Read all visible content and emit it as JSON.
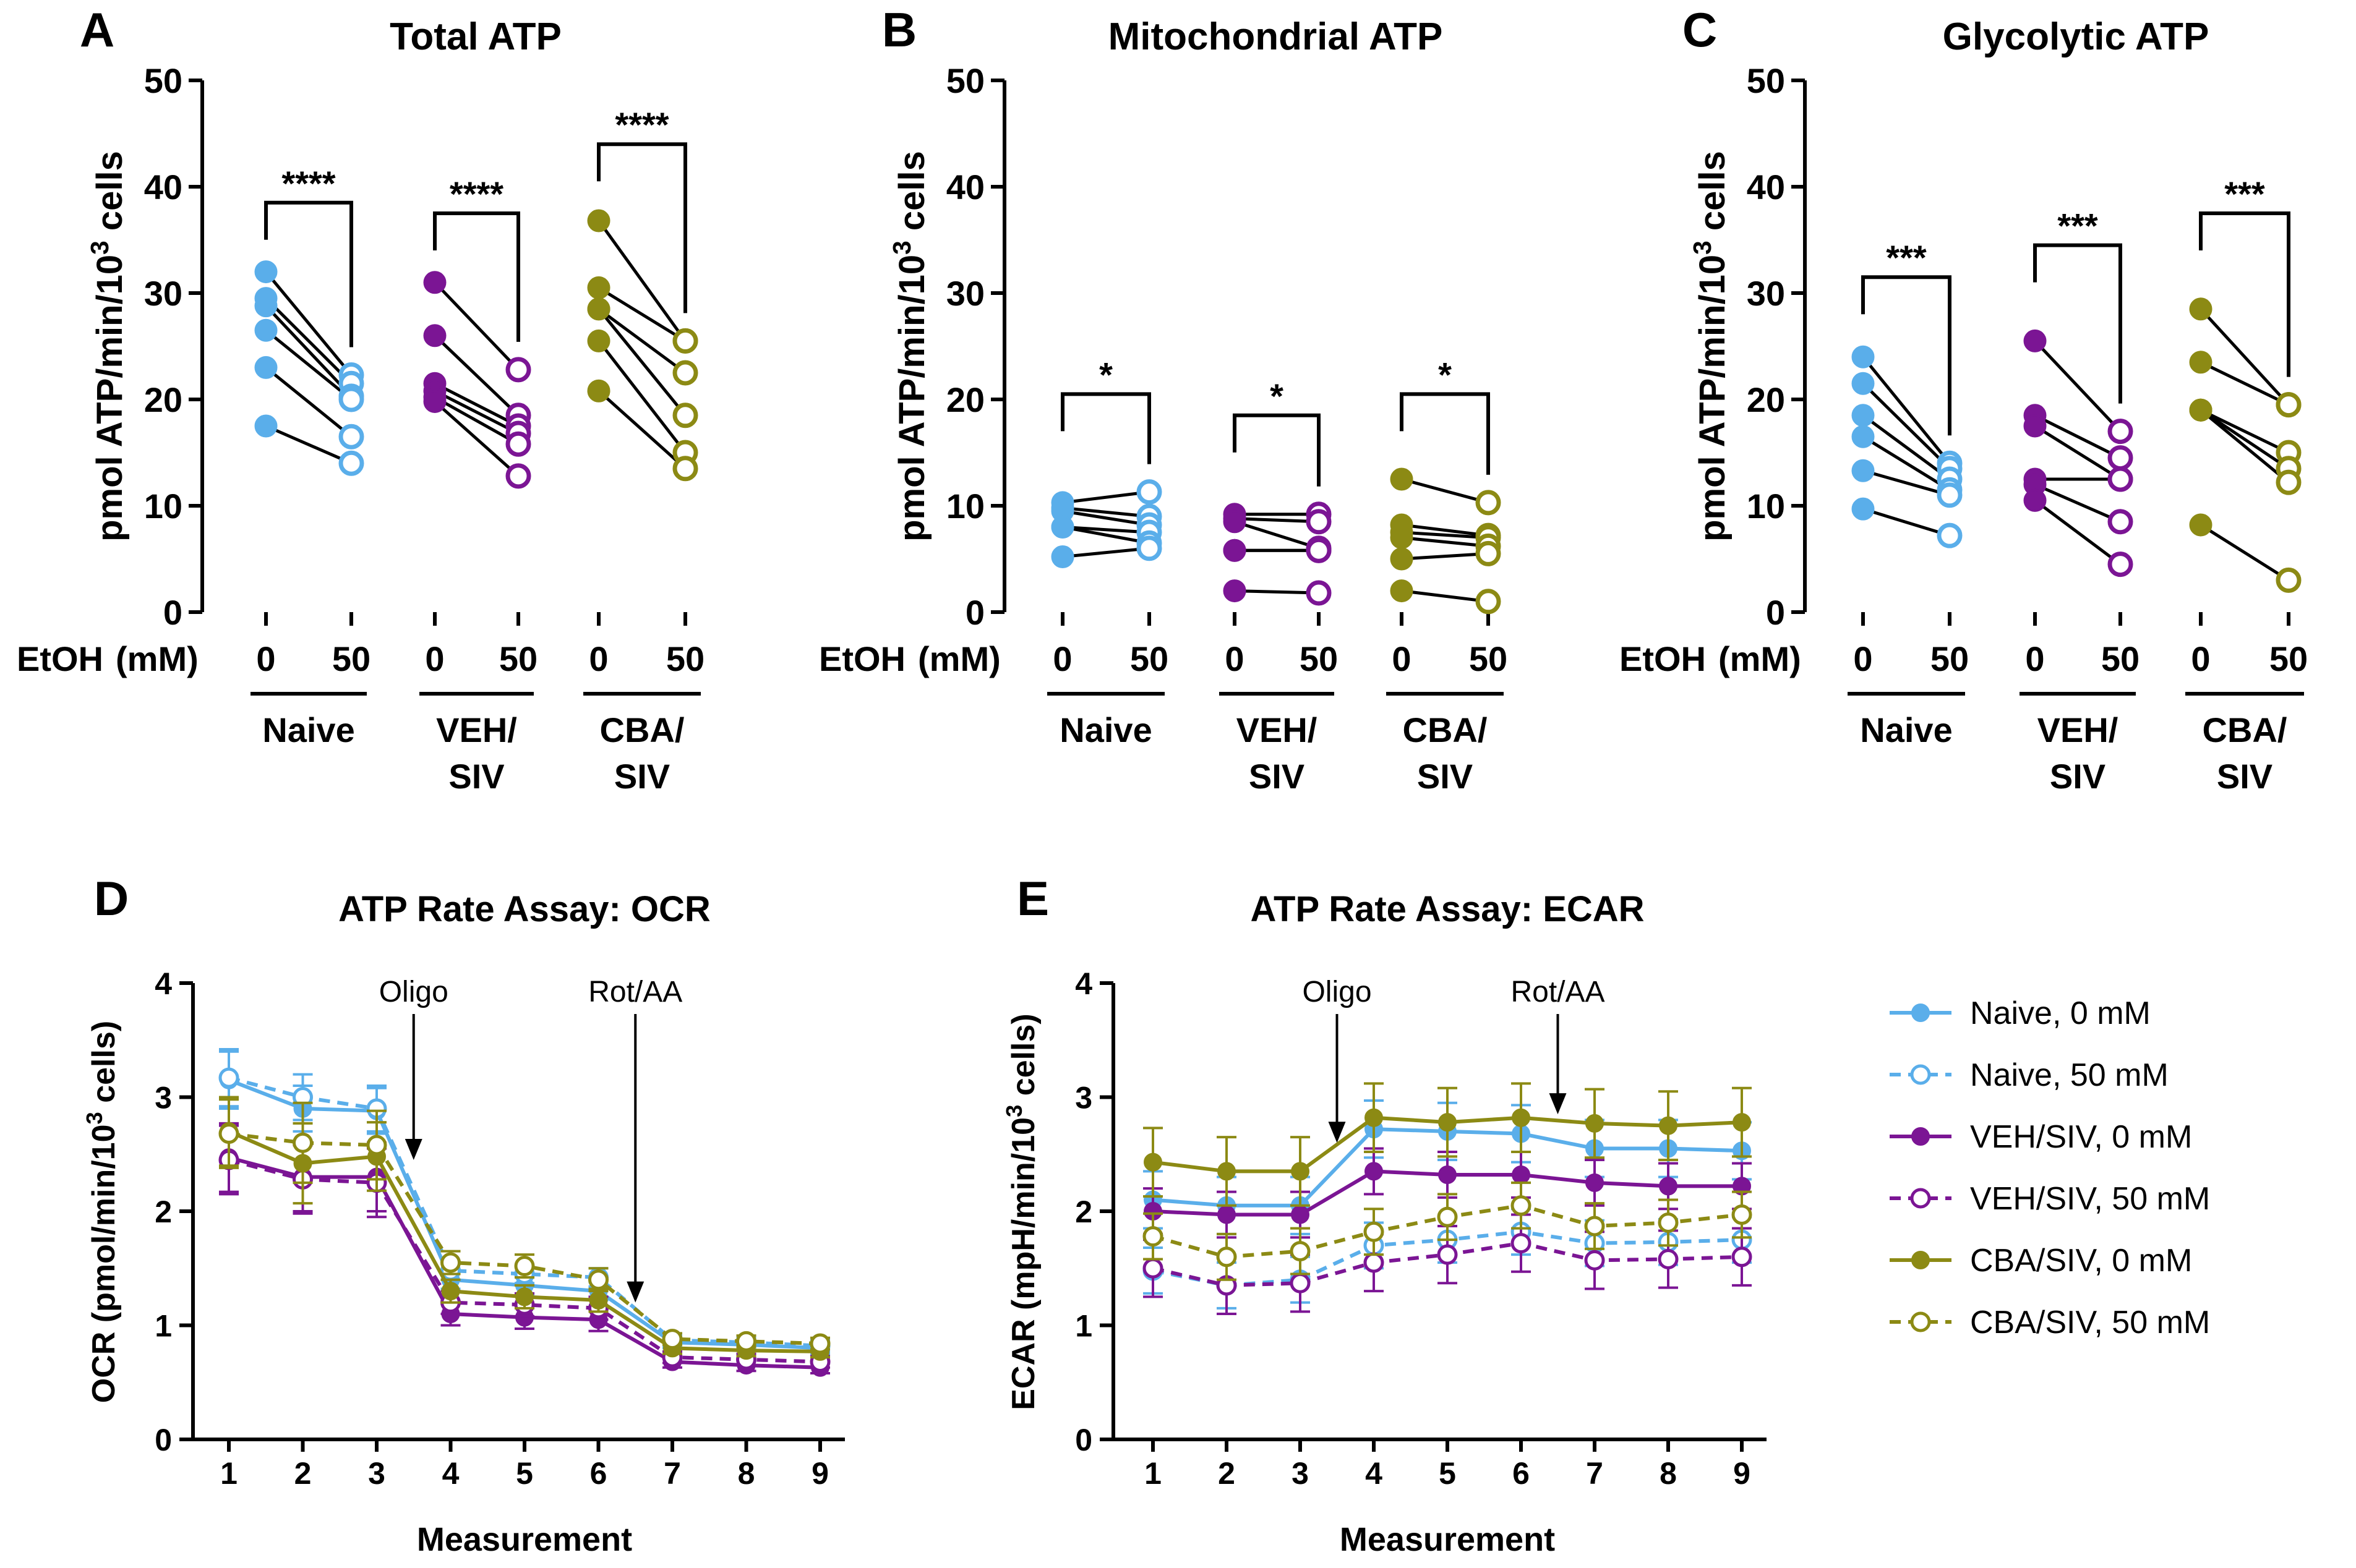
{
  "colors": {
    "naive": "#5aaeea",
    "veh": "#7b1594",
    "cba": "#8c8a14",
    "black": "#000000"
  },
  "top_common": {
    "etoh_label": "EtOH",
    "mm_label": "(mM)",
    "dose_labels": [
      "0",
      "50"
    ],
    "groups": [
      {
        "line1": "Naive",
        "line2": ""
      },
      {
        "line1": "VEH/",
        "line2": "SIV"
      },
      {
        "line1": "CBA/",
        "line2": "SIV"
      }
    ]
  },
  "chart_data": [
    {
      "panel": "A",
      "type": "scatter",
      "title": "Total ATP",
      "ylabel": "pmol ATP/min/10³ cells",
      "ylim": [
        0,
        50
      ],
      "yticks": [
        "0",
        "10",
        "20",
        "30",
        "40",
        "50"
      ],
      "groups": [
        {
          "name": "Naive",
          "color_key": "naive",
          "sig": "****",
          "bracket_top": 38.5,
          "pairs": [
            [
              32.0,
              22.3
            ],
            [
              29.5,
              21.5
            ],
            [
              28.8,
              20.3
            ],
            [
              26.5,
              20.0
            ],
            [
              23.0,
              16.5
            ],
            [
              17.5,
              14.0
            ]
          ]
        },
        {
          "name": "VEH/SIV",
          "color_key": "veh",
          "sig": "****",
          "bracket_top": 37.5,
          "pairs": [
            [
              31.0,
              22.8
            ],
            [
              26.0,
              18.5
            ],
            [
              21.5,
              17.5
            ],
            [
              20.8,
              16.8
            ],
            [
              20.2,
              15.8
            ],
            [
              19.8,
              12.8
            ]
          ]
        },
        {
          "name": "CBA/SIV",
          "color_key": "cba",
          "sig": "****",
          "bracket_top": 44.0,
          "pairs": [
            [
              36.8,
              25.5
            ],
            [
              30.5,
              25.5
            ],
            [
              28.5,
              22.5
            ],
            [
              28.5,
              18.5
            ],
            [
              25.5,
              15.0
            ],
            [
              20.8,
              13.5
            ]
          ]
        }
      ]
    },
    {
      "panel": "B",
      "type": "scatter",
      "title": "Mitochondrial ATP",
      "ylabel": "pmol ATP/min/10³ cells",
      "ylim": [
        0,
        50
      ],
      "yticks": [
        "0",
        "10",
        "20",
        "30",
        "40",
        "50"
      ],
      "groups": [
        {
          "name": "Naive",
          "color_key": "naive",
          "sig": "*",
          "bracket_top": 20.5,
          "pairs": [
            [
              10.3,
              11.3
            ],
            [
              9.8,
              9.0
            ],
            [
              9.5,
              8.2
            ],
            [
              8.0,
              7.5
            ],
            [
              8.0,
              6.5
            ],
            [
              5.2,
              6.0
            ]
          ]
        },
        {
          "name": "VEH/SIV",
          "color_key": "veh",
          "sig": "*",
          "bracket_top": 18.5,
          "pairs": [
            [
              9.2,
              9.2
            ],
            [
              8.8,
              8.5
            ],
            [
              8.5,
              6.0
            ],
            [
              5.8,
              5.8
            ],
            [
              5.8,
              5.8
            ],
            [
              2.0,
              1.8
            ]
          ]
        },
        {
          "name": "CBA/SIV",
          "color_key": "cba",
          "sig": "*",
          "bracket_top": 20.5,
          "pairs": [
            [
              12.5,
              10.3
            ],
            [
              8.2,
              7.2
            ],
            [
              7.5,
              7.0
            ],
            [
              7.0,
              6.2
            ],
            [
              5.0,
              5.5
            ],
            [
              2.0,
              1.0
            ]
          ]
        }
      ]
    },
    {
      "panel": "C",
      "type": "scatter",
      "title": "Glycolytic ATP",
      "ylabel": "pmol ATP/min/10³ cells",
      "ylim": [
        0,
        50
      ],
      "yticks": [
        "0",
        "10",
        "20",
        "30",
        "40",
        "50"
      ],
      "groups": [
        {
          "name": "Naive",
          "color_key": "naive",
          "sig": "***",
          "bracket_top": 31.5,
          "pairs": [
            [
              24.0,
              14.0
            ],
            [
              21.5,
              13.5
            ],
            [
              18.5,
              12.5
            ],
            [
              16.5,
              11.5
            ],
            [
              13.3,
              11.0
            ],
            [
              9.7,
              7.2
            ]
          ]
        },
        {
          "name": "VEH/SIV",
          "color_key": "veh",
          "sig": "***",
          "bracket_top": 34.5,
          "pairs": [
            [
              25.5,
              17.0
            ],
            [
              18.5,
              14.5
            ],
            [
              17.5,
              12.5
            ],
            [
              12.5,
              12.5
            ],
            [
              12.0,
              8.5
            ],
            [
              10.5,
              4.5
            ]
          ]
        },
        {
          "name": "CBA/SIV",
          "color_key": "cba",
          "sig": "***",
          "bracket_top": 37.5,
          "pairs": [
            [
              28.5,
              19.5
            ],
            [
              23.5,
              19.5
            ],
            [
              19.0,
              15.0
            ],
            [
              19.0,
              13.5
            ],
            [
              19.0,
              12.2
            ],
            [
              8.2,
              3.0
            ]
          ]
        }
      ]
    },
    {
      "panel": "D",
      "type": "line",
      "title": "ATP Rate Assay: OCR",
      "ylabel": "OCR (pmol/min/10³ cells)",
      "xlabel": "Measurement",
      "x": [
        1,
        2,
        3,
        4,
        5,
        6,
        7,
        8,
        9
      ],
      "ylim": [
        0,
        4
      ],
      "yticks": [
        "0",
        "1",
        "2",
        "3",
        "4"
      ],
      "annotations": [
        {
          "label": "Oligo",
          "x": 3.5,
          "y_start": 3.95,
          "y_end": 2.45
        },
        {
          "label": "Rot/AA",
          "x": 6.5,
          "y_start": 3.95,
          "y_end": 1.2
        }
      ],
      "series": [
        {
          "name": "Naive, 0 mM",
          "color_key": "naive",
          "dashed": false,
          "filled": true,
          "values": [
            3.15,
            2.9,
            2.88,
            1.4,
            1.35,
            1.3,
            0.85,
            0.83,
            0.8
          ],
          "errors": [
            0.25,
            0.2,
            0.2,
            0.08,
            0.08,
            0.08,
            0.05,
            0.05,
            0.05
          ]
        },
        {
          "name": "Naive, 50 mM",
          "color_key": "naive",
          "dashed": true,
          "filled": false,
          "values": [
            3.17,
            3.0,
            2.9,
            1.48,
            1.45,
            1.42,
            0.87,
            0.85,
            0.82
          ],
          "errors": [
            0.25,
            0.2,
            0.2,
            0.08,
            0.08,
            0.08,
            0.05,
            0.05,
            0.05
          ]
        },
        {
          "name": "VEH/SIV, 0 mM",
          "color_key": "veh",
          "dashed": false,
          "filled": true,
          "values": [
            2.47,
            2.3,
            2.3,
            1.1,
            1.07,
            1.05,
            0.68,
            0.65,
            0.63
          ],
          "errors": [
            0.3,
            0.3,
            0.3,
            0.1,
            0.1,
            0.1,
            0.05,
            0.05,
            0.05
          ]
        },
        {
          "name": "VEH/SIV, 50 mM",
          "color_key": "veh",
          "dashed": true,
          "filled": false,
          "values": [
            2.45,
            2.28,
            2.25,
            1.2,
            1.18,
            1.15,
            0.72,
            0.7,
            0.68
          ],
          "errors": [
            0.3,
            0.3,
            0.3,
            0.1,
            0.1,
            0.1,
            0.05,
            0.05,
            0.05
          ]
        },
        {
          "name": "CBA/SIV, 0 mM",
          "color_key": "cba",
          "dashed": false,
          "filled": true,
          "values": [
            2.7,
            2.42,
            2.48,
            1.3,
            1.25,
            1.22,
            0.8,
            0.78,
            0.77
          ],
          "errors": [
            0.3,
            0.35,
            0.3,
            0.1,
            0.1,
            0.1,
            0.05,
            0.05,
            0.05
          ]
        },
        {
          "name": "CBA/SIV, 50 mM",
          "color_key": "cba",
          "dashed": true,
          "filled": false,
          "values": [
            2.68,
            2.6,
            2.58,
            1.55,
            1.52,
            1.4,
            0.88,
            0.86,
            0.84
          ],
          "errors": [
            0.3,
            0.35,
            0.3,
            0.1,
            0.1,
            0.1,
            0.05,
            0.05,
            0.05
          ]
        }
      ]
    },
    {
      "panel": "E",
      "type": "line",
      "title": "ATP Rate Assay: ECAR",
      "ylabel": "ECAR (mpH/min/10³ cells)",
      "xlabel": "Measurement",
      "x": [
        1,
        2,
        3,
        4,
        5,
        6,
        7,
        8,
        9
      ],
      "ylim": [
        0,
        4
      ],
      "yticks": [
        "0",
        "1",
        "2",
        "3",
        "4"
      ],
      "annotations": [
        {
          "label": "Oligo",
          "x": 3.5,
          "y_start": 3.95,
          "y_end": 2.6
        },
        {
          "label": "Rot/AA",
          "x": 6.5,
          "y_start": 3.95,
          "y_end": 2.85
        }
      ],
      "series": [
        {
          "name": "Naive, 0 mM",
          "color_key": "naive",
          "dashed": false,
          "filled": true,
          "values": [
            2.1,
            2.05,
            2.05,
            2.72,
            2.7,
            2.68,
            2.55,
            2.55,
            2.53
          ],
          "errors": [
            0.25,
            0.25,
            0.25,
            0.25,
            0.25,
            0.25,
            0.25,
            0.25,
            0.25
          ]
        },
        {
          "name": "Naive, 50 mM",
          "color_key": "naive",
          "dashed": true,
          "filled": false,
          "values": [
            1.48,
            1.35,
            1.4,
            1.7,
            1.75,
            1.82,
            1.72,
            1.73,
            1.75
          ],
          "errors": [
            0.2,
            0.2,
            0.2,
            0.2,
            0.2,
            0.2,
            0.2,
            0.2,
            0.2
          ]
        },
        {
          "name": "VEH/SIV, 0 mM",
          "color_key": "veh",
          "dashed": false,
          "filled": true,
          "values": [
            2.0,
            1.97,
            1.97,
            2.35,
            2.32,
            2.32,
            2.25,
            2.22,
            2.22
          ],
          "errors": [
            0.2,
            0.2,
            0.2,
            0.2,
            0.2,
            0.2,
            0.2,
            0.2,
            0.2
          ]
        },
        {
          "name": "VEH/SIV, 50 mM",
          "color_key": "veh",
          "dashed": true,
          "filled": false,
          "values": [
            1.5,
            1.35,
            1.37,
            1.55,
            1.62,
            1.72,
            1.57,
            1.58,
            1.6
          ],
          "errors": [
            0.25,
            0.25,
            0.25,
            0.25,
            0.25,
            0.25,
            0.25,
            0.25,
            0.25
          ]
        },
        {
          "name": "CBA/SIV, 0 mM",
          "color_key": "cba",
          "dashed": false,
          "filled": true,
          "values": [
            2.43,
            2.35,
            2.35,
            2.82,
            2.78,
            2.82,
            2.77,
            2.75,
            2.78
          ],
          "errors": [
            0.3,
            0.3,
            0.3,
            0.3,
            0.3,
            0.3,
            0.3,
            0.3,
            0.3
          ]
        },
        {
          "name": "CBA/SIV, 50 mM",
          "color_key": "cba",
          "dashed": true,
          "filled": false,
          "values": [
            1.78,
            1.6,
            1.65,
            1.82,
            1.95,
            2.05,
            1.87,
            1.9,
            1.97
          ],
          "errors": [
            0.2,
            0.2,
            0.2,
            0.2,
            0.2,
            0.2,
            0.2,
            0.2,
            0.2
          ]
        }
      ]
    }
  ],
  "legend": [
    {
      "label": "Naive, 0 mM",
      "color_key": "naive",
      "dashed": false,
      "filled": true
    },
    {
      "label": "Naive, 50 mM",
      "color_key": "naive",
      "dashed": true,
      "filled": false
    },
    {
      "label": "VEH/SIV, 0 mM",
      "color_key": "veh",
      "dashed": false,
      "filled": true
    },
    {
      "label": "VEH/SIV, 50 mM",
      "color_key": "veh",
      "dashed": true,
      "filled": false
    },
    {
      "label": "CBA/SIV, 0 mM",
      "color_key": "cba",
      "dashed": false,
      "filled": true
    },
    {
      "label": "CBA/SIV, 50 mM",
      "color_key": "cba",
      "dashed": true,
      "filled": false
    }
  ]
}
